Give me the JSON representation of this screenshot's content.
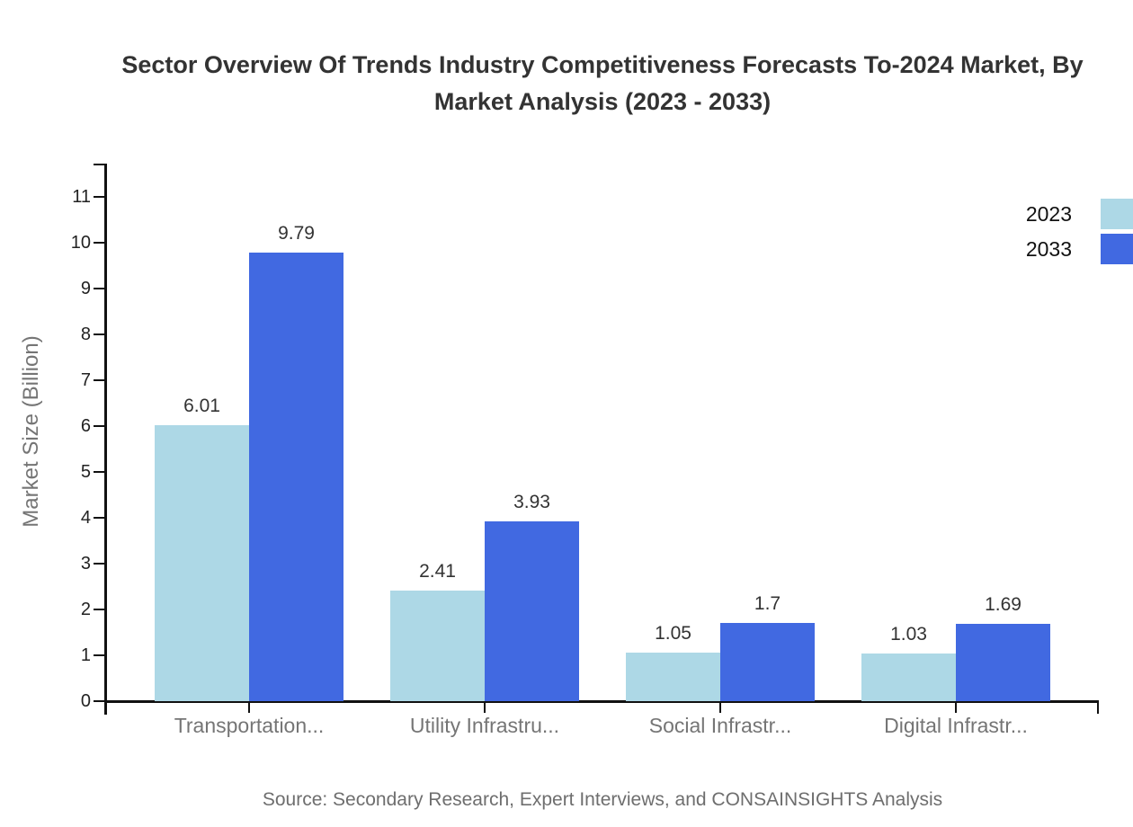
{
  "title": {
    "line1": "Sector Overview Of Trends Industry Competitiveness Forecasts To-2024 Market, By",
    "line2": "Market Analysis (2023 - 2033)"
  },
  "source_note": "Source: Secondary Research, Expert Interviews, and CONSAINSIGHTS Analysis",
  "colors": {
    "series_2023": "#ADD8E6",
    "series_2033": "#4169E1",
    "axis": "#111111",
    "title_text": "#333333",
    "muted_text": "#757575",
    "source_text": "#6e6e6e"
  },
  "chart_data": {
    "type": "bar",
    "title": "Sector Overview Of Trends Industry Competitiveness Forecasts To-2024 Market, By Market Analysis (2023 - 2033)",
    "categories": [
      "Transportation...",
      "Utility Infrastru...",
      "Social Infrastr...",
      "Digital Infrastr..."
    ],
    "series": [
      {
        "name": "2023",
        "color": "#ADD8E6",
        "values": [
          6.01,
          2.41,
          1.05,
          1.03
        ]
      },
      {
        "name": "2033",
        "color": "#4169E1",
        "values": [
          9.79,
          3.93,
          1.7,
          1.69
        ]
      }
    ],
    "value_labels": [
      "6.01",
      "2.41",
      "1.05",
      "1.03",
      "9.79",
      "3.93",
      "1.7",
      "1.69"
    ],
    "xlabel": "",
    "ylabel": "Market Size (Billion)",
    "yticks": [
      0,
      1,
      2,
      3,
      4,
      5,
      6,
      7,
      8,
      9,
      10,
      11
    ],
    "ylim": [
      0,
      11.7
    ],
    "grid": false,
    "legend_position": "top-right"
  }
}
